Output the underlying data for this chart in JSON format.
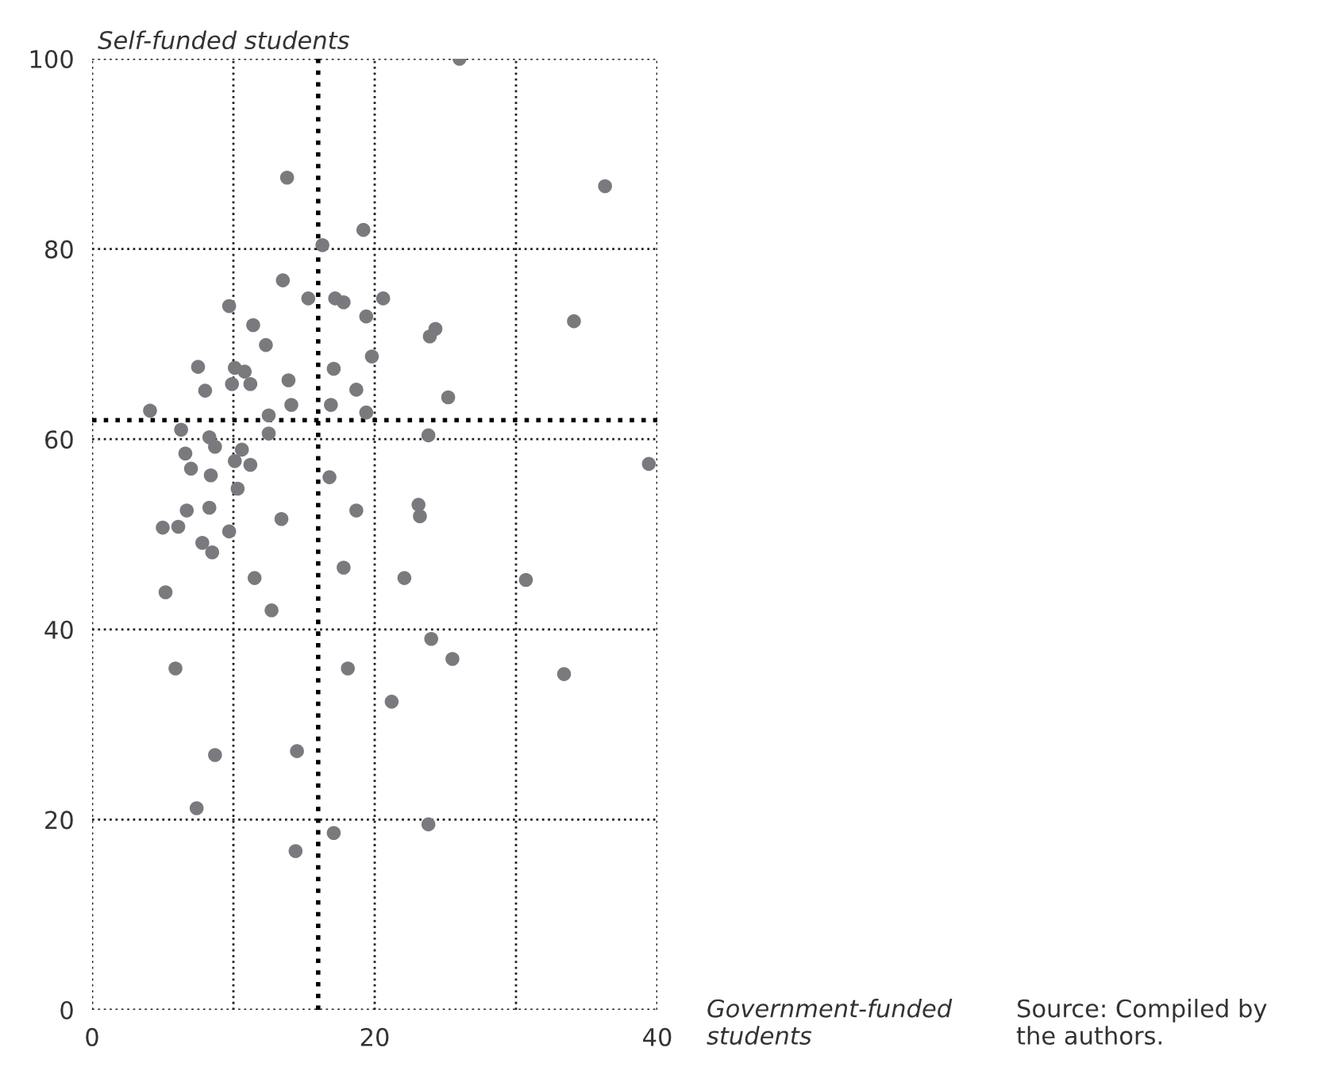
{
  "chart_data": {
    "type": "scatter",
    "ylabel": "Self-funded students",
    "xlabel": "Government-funded students",
    "annotations": [
      "Source: Compiled by the authors."
    ],
    "xlim": [
      0,
      40
    ],
    "ylim": [
      0,
      100
    ],
    "xticks": [
      0,
      {
        "value": 10,
        "label": null
      },
      20,
      {
        "value": 30,
        "label": null
      },
      40
    ],
    "yticks": [
      0,
      20,
      40,
      60,
      80,
      100
    ],
    "grid": true,
    "marker": "circle",
    "ref_lines": [
      {
        "axis": "x",
        "value": 16,
        "label": null,
        "color": "#000000",
        "line_style": "dotted"
      },
      {
        "axis": "y",
        "value": 62,
        "label": null,
        "color": "#000000",
        "line_style": "dotted"
      }
    ],
    "series": [
      {
        "color": "#7a7a7e",
        "x": [
          13.8,
          19.2,
          16.3,
          13.5,
          15.3,
          17.2,
          17.8,
          20.6,
          9.7,
          19.4,
          11.4,
          12.3,
          19.8,
          7.5,
          10.1,
          10.8,
          17.1,
          8.0,
          9.9,
          11.2,
          13.9,
          18.7,
          4.1,
          14.1,
          16.9,
          19.4,
          12.5,
          26.0,
          36.3,
          24.3,
          23.9,
          34.1,
          25.2,
          6.3,
          8.3,
          12.5,
          6.6,
          8.7,
          10.6,
          10.1,
          11.2,
          7.0,
          8.4,
          16.8,
          10.3,
          6.7,
          8.3,
          18.7,
          13.4,
          5.0,
          6.1,
          9.7,
          7.8,
          8.5,
          17.8,
          22.1,
          11.5,
          5.2,
          12.7,
          5.9,
          18.1,
          21.2,
          8.7,
          14.5,
          7.4,
          17.1,
          14.4,
          23.8,
          39.4,
          23.1,
          23.2,
          30.7,
          24.0,
          25.5,
          33.4,
          23.8
        ],
        "values": [
          87.5,
          82.0,
          80.4,
          76.7,
          74.8,
          74.8,
          74.4,
          74.8,
          74.0,
          72.9,
          72.0,
          69.9,
          68.7,
          67.6,
          67.5,
          67.1,
          67.4,
          65.1,
          65.8,
          65.8,
          66.2,
          65.2,
          63.0,
          63.6,
          63.6,
          62.8,
          62.5,
          100.0,
          86.6,
          71.6,
          70.8,
          72.4,
          64.4,
          61.0,
          60.2,
          60.6,
          58.5,
          59.2,
          58.9,
          57.7,
          57.3,
          56.9,
          56.2,
          56.0,
          54.8,
          52.5,
          52.8,
          52.5,
          51.6,
          50.7,
          50.8,
          50.3,
          49.1,
          48.1,
          46.5,
          45.4,
          45.4,
          43.9,
          42.0,
          35.9,
          35.9,
          32.4,
          26.8,
          27.2,
          21.2,
          18.6,
          16.7,
          60.4,
          57.4,
          53.1,
          51.9,
          45.2,
          39.0,
          36.9,
          35.3,
          19.5
        ]
      }
    ]
  }
}
